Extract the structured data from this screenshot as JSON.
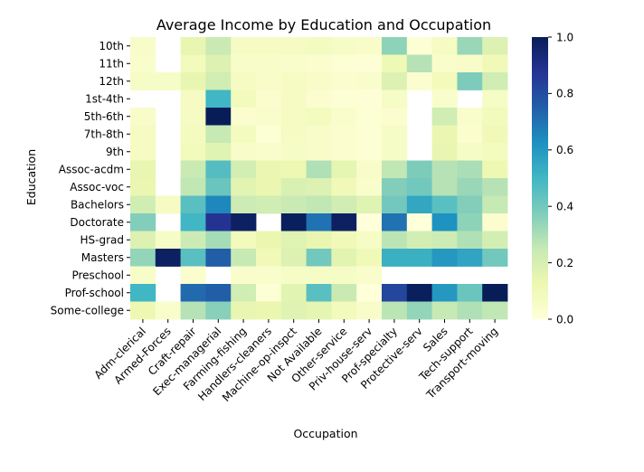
{
  "chart_data": {
    "type": "heatmap",
    "title": "Average Income by Education and Occupation",
    "xlabel": "Occupation",
    "ylabel": "Education",
    "x_categories": [
      "Adm-clerical",
      "Armed-Forces",
      "Craft-repair",
      "Exec-managerial",
      "Farming-fishing",
      "Handlers-cleaners",
      "Machine-op-inspct",
      "Not Available",
      "Other-service",
      "Priv-house-serv",
      "Prof-specialty",
      "Protective-serv",
      "Sales",
      "Tech-support",
      "Transport-moving"
    ],
    "y_categories": [
      "10th",
      "11th",
      "12th",
      "1st-4th",
      "5th-6th",
      "7th-8th",
      "9th",
      "Assoc-acdm",
      "Assoc-voc",
      "Bachelors",
      "Doctorate",
      "HS-grad",
      "Masters",
      "Preschool",
      "Prof-school",
      "Some-college"
    ],
    "values": [
      [
        0.05,
        null,
        0.14,
        0.24,
        0.07,
        0.07,
        0.07,
        0.08,
        0.06,
        0.05,
        0.35,
        0.02,
        0.07,
        0.33,
        0.18
      ],
      [
        0.04,
        null,
        0.09,
        0.18,
        0.05,
        0.05,
        0.04,
        0.03,
        0.02,
        0.01,
        0.11,
        0.28,
        0.04,
        0.05,
        0.1
      ],
      [
        0.06,
        0.06,
        0.14,
        0.22,
        0.07,
        0.05,
        0.07,
        0.05,
        0.03,
        0.04,
        0.18,
        0.03,
        0.09,
        0.38,
        0.22
      ],
      [
        null,
        null,
        0.07,
        0.5,
        0.09,
        0.03,
        0.07,
        0.03,
        0.02,
        0.01,
        0.06,
        null,
        0.04,
        null,
        0.06
      ],
      [
        0.05,
        null,
        0.07,
        1.0,
        0.03,
        0.04,
        0.07,
        0.08,
        0.04,
        0.02,
        0.03,
        null,
        0.22,
        0.04,
        0.09
      ],
      [
        0.07,
        null,
        0.08,
        0.25,
        0.08,
        0.02,
        0.07,
        0.05,
        0.03,
        0.02,
        0.06,
        null,
        0.13,
        0.03,
        0.1
      ],
      [
        0.07,
        null,
        0.09,
        0.17,
        0.05,
        0.04,
        0.06,
        0.05,
        0.03,
        0.02,
        0.06,
        null,
        0.14,
        0.06,
        0.08
      ],
      [
        0.14,
        null,
        0.24,
        0.46,
        0.21,
        0.13,
        0.12,
        0.29,
        0.15,
        0.05,
        0.26,
        0.38,
        0.28,
        0.3,
        0.12
      ],
      [
        0.13,
        null,
        0.26,
        0.42,
        0.16,
        0.13,
        0.19,
        0.18,
        0.1,
        0.04,
        0.37,
        0.4,
        0.28,
        0.33,
        0.28
      ],
      [
        0.22,
        0.07,
        0.45,
        0.65,
        0.23,
        0.22,
        0.24,
        0.26,
        0.22,
        0.17,
        0.4,
        0.55,
        0.45,
        0.37,
        0.25
      ],
      [
        0.37,
        null,
        0.5,
        0.88,
        0.98,
        null,
        0.99,
        0.7,
        0.98,
        0.0,
        0.7,
        0.0,
        0.62,
        0.35,
        0.03
      ],
      [
        0.18,
        0.06,
        0.23,
        0.31,
        0.09,
        0.13,
        0.17,
        0.14,
        0.1,
        0.06,
        0.27,
        0.21,
        0.23,
        0.29,
        0.21
      ],
      [
        0.34,
        0.98,
        0.45,
        0.75,
        0.25,
        0.1,
        0.18,
        0.4,
        0.16,
        0.1,
        0.52,
        0.52,
        0.6,
        0.56,
        0.4
      ],
      [
        0.05,
        null,
        0.03,
        null,
        0.04,
        0.04,
        0.06,
        0.06,
        0.06,
        0.04,
        null,
        null,
        null,
        null,
        null
      ],
      [
        0.5,
        null,
        0.72,
        0.75,
        0.22,
        0.02,
        0.16,
        0.45,
        0.24,
        0.0,
        0.82,
        0.99,
        0.6,
        0.42,
        1.0
      ],
      [
        0.12,
        0.04,
        0.28,
        0.36,
        0.14,
        0.13,
        0.17,
        0.15,
        0.09,
        0.05,
        0.27,
        0.34,
        0.25,
        0.29,
        0.26
      ]
    ],
    "colorbar": {
      "colormap": "YlGnBu",
      "range": [
        0.0,
        1.0
      ],
      "ticks": [
        "0.0",
        "0.2",
        "0.4",
        "0.6",
        "0.8",
        "1.0"
      ],
      "stops": [
        "#ffffd9",
        "#edf8b1",
        "#c7e9b4",
        "#7fcdbb",
        "#41b6c4",
        "#1d91c0",
        "#225ea8",
        "#253494",
        "#081d58"
      ]
    },
    "grid": false
  }
}
